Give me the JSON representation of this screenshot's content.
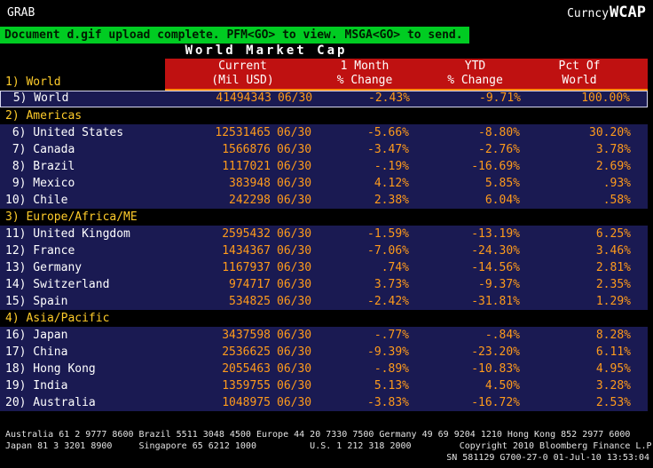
{
  "titlebar": {
    "grab": "GRAB",
    "curncy": "Curncy",
    "wcap": "WCAP"
  },
  "message": "Document d.gif upload complete. PFM<GO> to view. MSGA<GO> to send.",
  "title": "World Market Cap",
  "header": {
    "current_l1": "Current",
    "current_l2": "(Mil USD)",
    "month_l1": "1 Month",
    "month_l2": "% Change",
    "ytd_l1": "YTD",
    "ytd_l2": "% Change",
    "pct_l1": "Pct Of",
    "pct_l2": "World"
  },
  "world_section_label": "1) World",
  "world_row": {
    "label": " 5) World",
    "value": "41494343",
    "date": "06/30",
    "m1": "-2.43%",
    "ytd": "-9.71%",
    "pct": "100.00%"
  },
  "sections": [
    {
      "label": "2) Americas",
      "rows": [
        {
          "label": " 6) United States",
          "value": "12531465",
          "date": "06/30",
          "m1": "-5.66%",
          "ytd": "-8.80%",
          "pct": "30.20%"
        },
        {
          "label": " 7) Canada",
          "value": "1566876",
          "date": "06/30",
          "m1": "-3.47%",
          "ytd": "-2.76%",
          "pct": "3.78%"
        },
        {
          "label": " 8) Brazil",
          "value": "1117021",
          "date": "06/30",
          "m1": "-.19%",
          "ytd": "-16.69%",
          "pct": "2.69%"
        },
        {
          "label": " 9) Mexico",
          "value": "383948",
          "date": "06/30",
          "m1": "4.12%",
          "ytd": "5.85%",
          "pct": ".93%"
        },
        {
          "label": "10) Chile",
          "value": "242298",
          "date": "06/30",
          "m1": "2.38%",
          "ytd": "6.04%",
          "pct": ".58%"
        }
      ]
    },
    {
      "label": "3) Europe/Africa/ME",
      "rows": [
        {
          "label": "11) United Kingdom",
          "value": "2595432",
          "date": "06/30",
          "m1": "-1.59%",
          "ytd": "-13.19%",
          "pct": "6.25%"
        },
        {
          "label": "12) France",
          "value": "1434367",
          "date": "06/30",
          "m1": "-7.06%",
          "ytd": "-24.30%",
          "pct": "3.46%"
        },
        {
          "label": "13) Germany",
          "value": "1167937",
          "date": "06/30",
          "m1": ".74%",
          "ytd": "-14.56%",
          "pct": "2.81%"
        },
        {
          "label": "14) Switzerland",
          "value": "974717",
          "date": "06/30",
          "m1": "3.73%",
          "ytd": "-9.37%",
          "pct": "2.35%"
        },
        {
          "label": "15) Spain",
          "value": "534825",
          "date": "06/30",
          "m1": "-2.42%",
          "ytd": "-31.81%",
          "pct": "1.29%"
        }
      ]
    },
    {
      "label": "4) Asia/Pacific",
      "rows": [
        {
          "label": "16) Japan",
          "value": "3437598",
          "date": "06/30",
          "m1": "-.77%",
          "ytd": "-.84%",
          "pct": "8.28%"
        },
        {
          "label": "17) China",
          "value": "2536625",
          "date": "06/30",
          "m1": "-9.39%",
          "ytd": "-23.20%",
          "pct": "6.11%"
        },
        {
          "label": "18) Hong Kong",
          "value": "2055463",
          "date": "06/30",
          "m1": "-.89%",
          "ytd": "-10.83%",
          "pct": "4.95%"
        },
        {
          "label": "19) India",
          "value": "1359755",
          "date": "06/30",
          "m1": "5.13%",
          "ytd": "4.50%",
          "pct": "3.28%"
        },
        {
          "label": "20) Australia",
          "value": "1048975",
          "date": "06/30",
          "m1": "-3.83%",
          "ytd": "-16.72%",
          "pct": "2.53%"
        }
      ]
    }
  ],
  "footer": {
    "line1": "Australia 61 2 9777 8600 Brazil 5511 3048 4500 Europe 44 20 7330 7500 Germany 49 69 9204 1210 Hong Kong 852 2977 6000",
    "line2": "Japan 81 3 3201 8900     Singapore 65 6212 1000          U.S. 1 212 318 2000         Copyright 2010 Bloomberg Finance L.P.",
    "line3": "SN 581129 G700-27-0 01-Jul-10 13:53:04"
  },
  "colors": {
    "message_green": "#00cc22",
    "header_red": "#bf1111",
    "header_underline": "#ff8a00",
    "row_blue": "#1a1a52",
    "value_amber": "#ff9b1c",
    "section_yellow": "#ffcc2a"
  }
}
